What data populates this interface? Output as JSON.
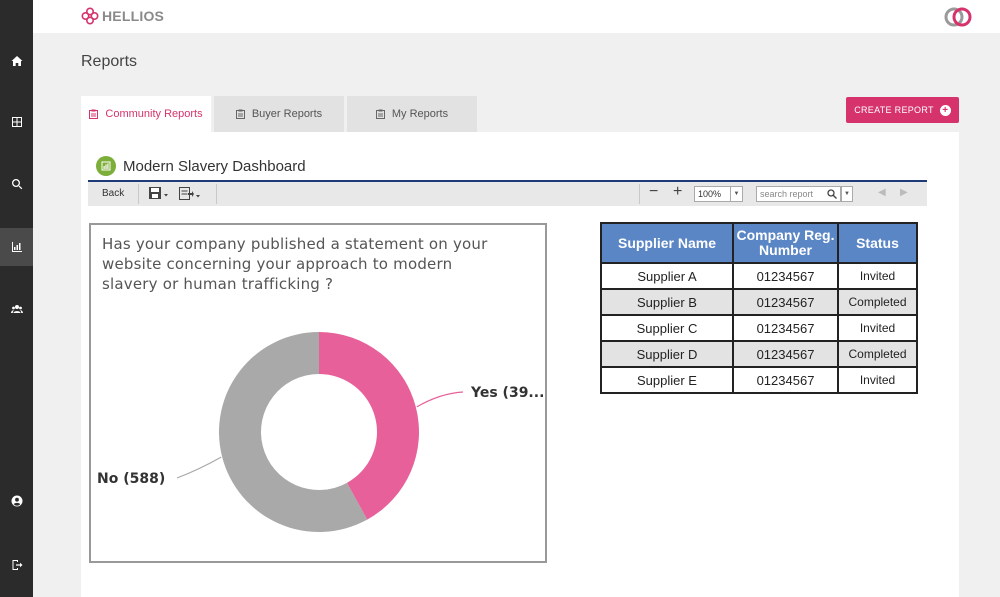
{
  "app": {
    "brand": "HELLIOS"
  },
  "page": {
    "title": "Reports"
  },
  "tabs": [
    {
      "label": "Community Reports",
      "active": true
    },
    {
      "label": "Buyer Reports",
      "active": false
    },
    {
      "label": "My Reports",
      "active": false
    }
  ],
  "create_button": {
    "label": "CREATE REPORT"
  },
  "sidebar": {
    "items": [
      {
        "icon": "home-icon"
      },
      {
        "icon": "grid-icon"
      },
      {
        "icon": "search-icon"
      },
      {
        "icon": "analytics-icon",
        "active": true
      },
      {
        "icon": "users-icon"
      },
      {
        "icon": "account-icon"
      },
      {
        "icon": "logout-icon"
      }
    ]
  },
  "dashboard": {
    "title": "Modern Slavery Dashboard",
    "toolbar": {
      "back_label": "Back",
      "zoom_value": "100%",
      "search_placeholder": "search report"
    }
  },
  "chart_data": {
    "type": "pie",
    "title": "Has your company published a statement on your website concerning your approach to modern slavery or human trafficking ?",
    "slices": [
      {
        "label": "Yes (39...",
        "value": 39,
        "color": "#e8609a"
      },
      {
        "label": "No (588)",
        "value": 588,
        "color": "#a9a9a9"
      }
    ]
  },
  "table": {
    "headers": [
      "Supplier Name",
      "Company Reg. Number",
      "Status"
    ],
    "rows": [
      {
        "name": "Supplier A",
        "reg": "01234567",
        "status": "Invited"
      },
      {
        "name": "Supplier B",
        "reg": "01234567",
        "status": "Completed"
      },
      {
        "name": "Supplier C",
        "reg": "01234567",
        "status": "Invited"
      },
      {
        "name": "Supplier D",
        "reg": "01234567",
        "status": "Completed"
      },
      {
        "name": "Supplier E",
        "reg": "01234567",
        "status": "Invited"
      }
    ]
  },
  "colors": {
    "accent": "#d6336c",
    "sidebar": "#2b2b2b",
    "table_header": "#5b86c5"
  }
}
